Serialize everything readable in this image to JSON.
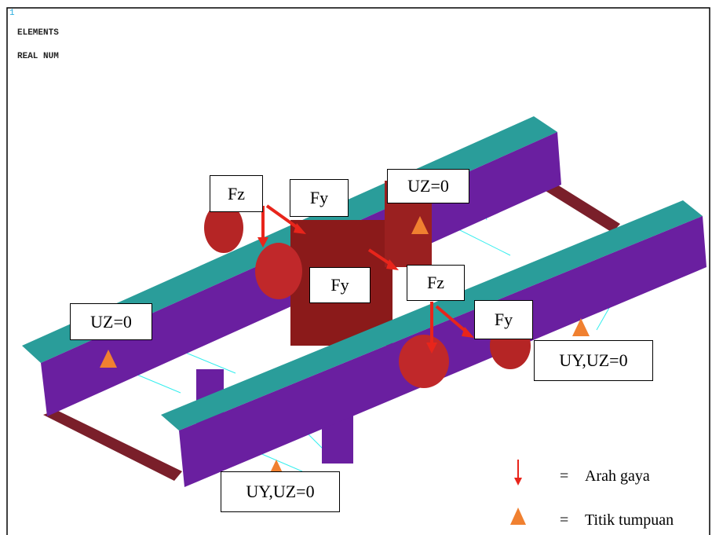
{
  "header": {
    "window_number": "1",
    "lines": [
      "ELEMENTS",
      "REAL NUM"
    ]
  },
  "annotations": [
    {
      "label": "Fz"
    },
    {
      "label": "Fy"
    },
    {
      "label": "UZ=0"
    },
    {
      "label": "Fy"
    },
    {
      "label": "Fz"
    },
    {
      "label": "Fy"
    },
    {
      "label": "UZ=0"
    },
    {
      "label": "UY,UZ=0"
    },
    {
      "label": "UY,UZ=0"
    }
  ],
  "legend": {
    "items": [
      {
        "symbol": "=",
        "label": "Arah gaya"
      },
      {
        "symbol": "=",
        "label": "Titik tumpuan"
      }
    ]
  }
}
